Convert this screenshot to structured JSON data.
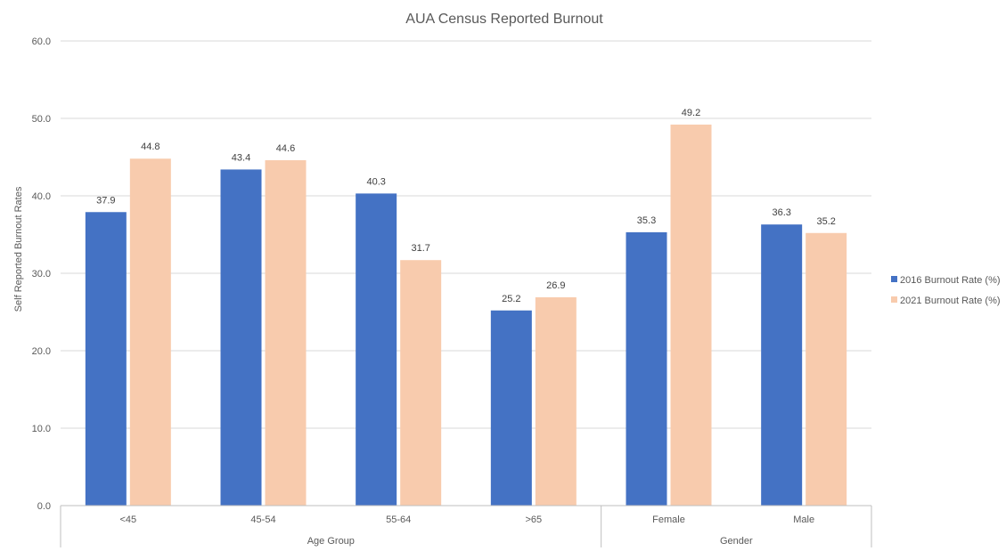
{
  "chart_data": {
    "type": "bar",
    "title": "AUA Census Reported Burnout",
    "ylabel": "Self Reported Burnout Rates",
    "ylim": [
      0,
      60
    ],
    "yticks": [
      "0.0",
      "10.0",
      "20.0",
      "30.0",
      "40.0",
      "50.0",
      "60.0"
    ],
    "grid": true,
    "legend_position": "right",
    "categories": [
      "<45",
      "45-54",
      "55-64",
      ">65",
      "Female",
      "Male"
    ],
    "groups": [
      {
        "label": "Age Group",
        "categories": [
          "<45",
          "45-54",
          "55-64",
          ">65"
        ]
      },
      {
        "label": "Gender",
        "categories": [
          "Female",
          "Male"
        ]
      }
    ],
    "series": [
      {
        "name": "2016 Burnout Rate (%)",
        "color": "#4472c4",
        "values": [
          37.9,
          43.4,
          40.3,
          25.2,
          35.3,
          36.3
        ]
      },
      {
        "name": "2021 Burnout Rate (%)",
        "color": "#f8cbad",
        "values": [
          44.8,
          44.6,
          31.7,
          26.9,
          49.2,
          35.2
        ]
      }
    ]
  }
}
